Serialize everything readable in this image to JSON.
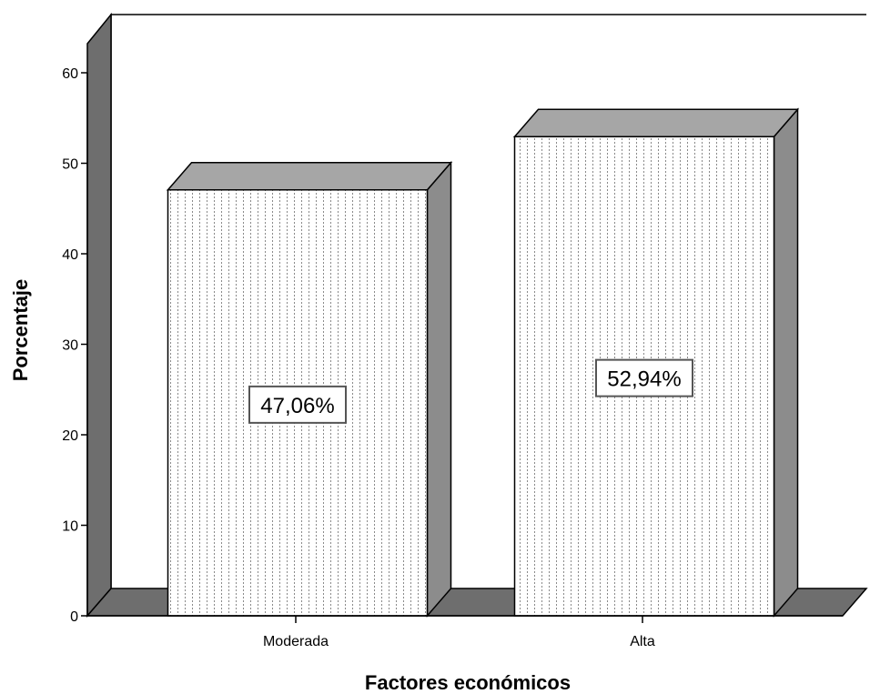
{
  "chart_data": {
    "type": "bar",
    "categories": [
      "Moderada",
      "Alta"
    ],
    "values": [
      47.06,
      52.94
    ],
    "data_labels": [
      "47,06%",
      "52,94%"
    ],
    "title": "",
    "xlabel": "Factores económicos",
    "ylabel": "Porcentaje",
    "ylim": [
      0,
      60
    ],
    "yticks": [
      "0",
      "10",
      "20",
      "30",
      "40",
      "50",
      "60"
    ],
    "style": "3d",
    "fill_pattern": "dotted",
    "colors": {
      "bar_front": "#ffffff",
      "bar_top": "#a6a6a6",
      "bar_side": "#8c8c8c",
      "wall": "#6e6e6e",
      "floor": "#6e6e6e",
      "pattern_dot": "#8a8a8a",
      "outline": "#000000"
    }
  }
}
